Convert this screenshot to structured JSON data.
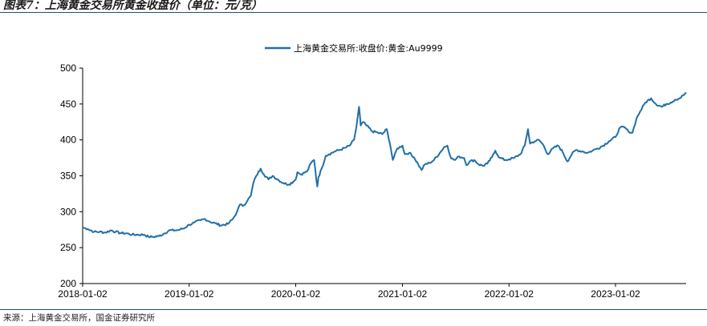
{
  "header": {
    "title": "图表7：上海黄金交易所黄金收盘价（单位：元/克）"
  },
  "footer": {
    "source": "来源：上海黄金交易所，国金证券研究所"
  },
  "colors": {
    "line": "#1f6fa8",
    "rule": "#1f4e79"
  },
  "chart_data": {
    "type": "line",
    "title": "",
    "xlabel": "",
    "ylabel": "",
    "ylim": [
      200,
      500
    ],
    "yticks": [
      "500",
      "450",
      "400",
      "350",
      "300",
      "250",
      "200"
    ],
    "xticks": [
      "2018-01-02",
      "2019-01-02",
      "2020-01-02",
      "2021-01-02",
      "2022-01-02",
      "2023-01-02"
    ],
    "xlim": [
      "2018-01-02",
      "2023-09-01"
    ],
    "legend": "top-center",
    "grid": false,
    "series": [
      {
        "name": "上海黄金交易所:收盘价:黄金:Au9999",
        "points": [
          [
            "2018-01-02",
            278
          ],
          [
            "2018-01-20",
            276
          ],
          [
            "2018-02-10",
            272
          ],
          [
            "2018-03-01",
            272
          ],
          [
            "2018-03-20",
            271
          ],
          [
            "2018-04-10",
            274
          ],
          [
            "2018-04-25",
            272
          ],
          [
            "2018-05-15",
            270
          ],
          [
            "2018-06-01",
            270
          ],
          [
            "2018-06-20",
            268
          ],
          [
            "2018-07-10",
            268
          ],
          [
            "2018-08-01",
            268
          ],
          [
            "2018-08-16",
            265
          ],
          [
            "2018-09-01",
            265
          ],
          [
            "2018-09-20",
            266
          ],
          [
            "2018-10-10",
            270
          ],
          [
            "2018-10-25",
            274
          ],
          [
            "2018-11-15",
            274
          ],
          [
            "2018-12-01",
            275
          ],
          [
            "2018-12-20",
            278
          ],
          [
            "2019-01-02",
            282
          ],
          [
            "2019-01-20",
            285
          ],
          [
            "2019-02-10",
            288
          ],
          [
            "2019-02-25",
            290
          ],
          [
            "2019-03-15",
            286
          ],
          [
            "2019-04-01",
            284
          ],
          [
            "2019-04-20",
            281
          ],
          [
            "2019-05-15",
            283
          ],
          [
            "2019-06-01",
            290
          ],
          [
            "2019-06-15",
            300
          ],
          [
            "2019-06-25",
            310
          ],
          [
            "2019-07-05",
            308
          ],
          [
            "2019-07-20",
            315
          ],
          [
            "2019-08-01",
            322
          ],
          [
            "2019-08-10",
            340
          ],
          [
            "2019-08-20",
            350
          ],
          [
            "2019-09-04",
            360
          ],
          [
            "2019-09-15",
            352
          ],
          [
            "2019-10-01",
            345
          ],
          [
            "2019-10-15",
            350
          ],
          [
            "2019-11-01",
            345
          ],
          [
            "2019-11-20",
            340
          ],
          [
            "2019-12-10",
            338
          ],
          [
            "2019-12-25",
            342
          ],
          [
            "2020-01-02",
            345
          ],
          [
            "2020-01-08",
            355
          ],
          [
            "2020-01-20",
            352
          ],
          [
            "2020-02-10",
            356
          ],
          [
            "2020-02-24",
            368
          ],
          [
            "2020-03-05",
            372
          ],
          [
            "2020-03-16",
            335
          ],
          [
            "2020-03-20",
            348
          ],
          [
            "2020-03-31",
            360
          ],
          [
            "2020-04-14",
            378
          ],
          [
            "2020-04-25",
            380
          ],
          [
            "2020-05-15",
            384
          ],
          [
            "2020-06-01",
            386
          ],
          [
            "2020-06-20",
            389
          ],
          [
            "2020-07-05",
            392
          ],
          [
            "2020-07-20",
            400
          ],
          [
            "2020-07-28",
            418
          ],
          [
            "2020-08-06",
            446
          ],
          [
            "2020-08-12",
            420
          ],
          [
            "2020-08-20",
            425
          ],
          [
            "2020-09-01",
            420
          ],
          [
            "2020-09-20",
            412
          ],
          [
            "2020-10-10",
            410
          ],
          [
            "2020-10-25",
            408
          ],
          [
            "2020-11-09",
            415
          ],
          [
            "2020-11-20",
            395
          ],
          [
            "2020-11-30",
            372
          ],
          [
            "2020-12-15",
            388
          ],
          [
            "2021-01-02",
            392
          ],
          [
            "2021-01-10",
            380
          ],
          [
            "2021-01-25",
            382
          ],
          [
            "2021-02-10",
            376
          ],
          [
            "2021-02-25",
            366
          ],
          [
            "2021-03-08",
            358
          ],
          [
            "2021-03-20",
            366
          ],
          [
            "2021-04-05",
            368
          ],
          [
            "2021-04-20",
            372
          ],
          [
            "2021-05-10",
            382
          ],
          [
            "2021-05-25",
            390
          ],
          [
            "2021-06-05",
            392
          ],
          [
            "2021-06-18",
            374
          ],
          [
            "2021-07-01",
            372
          ],
          [
            "2021-07-15",
            377
          ],
          [
            "2021-08-01",
            375
          ],
          [
            "2021-08-09",
            365
          ],
          [
            "2021-08-20",
            370
          ],
          [
            "2021-09-05",
            372
          ],
          [
            "2021-09-20",
            366
          ],
          [
            "2021-10-05",
            364
          ],
          [
            "2021-10-20",
            367
          ],
          [
            "2021-11-05",
            376
          ],
          [
            "2021-11-16",
            385
          ],
          [
            "2021-12-01",
            375
          ],
          [
            "2021-12-20",
            372
          ],
          [
            "2022-01-02",
            373
          ],
          [
            "2022-01-20",
            375
          ],
          [
            "2022-02-10",
            380
          ],
          [
            "2022-02-25",
            392
          ],
          [
            "2022-03-08",
            415
          ],
          [
            "2022-03-15",
            395
          ],
          [
            "2022-03-31",
            398
          ],
          [
            "2022-04-15",
            400
          ],
          [
            "2022-05-01",
            392
          ],
          [
            "2022-05-15",
            380
          ],
          [
            "2022-06-01",
            388
          ],
          [
            "2022-06-20",
            392
          ],
          [
            "2022-07-05",
            383
          ],
          [
            "2022-07-21",
            370
          ],
          [
            "2022-08-05",
            380
          ],
          [
            "2022-08-20",
            386
          ],
          [
            "2022-09-10",
            384
          ],
          [
            "2022-09-28",
            382
          ],
          [
            "2022-10-15",
            385
          ],
          [
            "2022-11-01",
            388
          ],
          [
            "2022-11-20",
            392
          ],
          [
            "2022-12-10",
            398
          ],
          [
            "2023-01-02",
            404
          ],
          [
            "2023-01-15",
            416
          ],
          [
            "2023-01-31",
            418
          ],
          [
            "2023-02-15",
            412
          ],
          [
            "2023-03-01",
            410
          ],
          [
            "2023-03-15",
            430
          ],
          [
            "2023-03-28",
            440
          ],
          [
            "2023-04-14",
            452
          ],
          [
            "2023-05-04",
            458
          ],
          [
            "2023-05-20",
            450
          ],
          [
            "2023-06-10",
            446
          ],
          [
            "2023-06-25",
            450
          ],
          [
            "2023-07-10",
            452
          ],
          [
            "2023-07-25",
            456
          ],
          [
            "2023-08-10",
            458
          ],
          [
            "2023-08-22",
            462
          ],
          [
            "2023-09-01",
            466
          ]
        ]
      }
    ]
  }
}
